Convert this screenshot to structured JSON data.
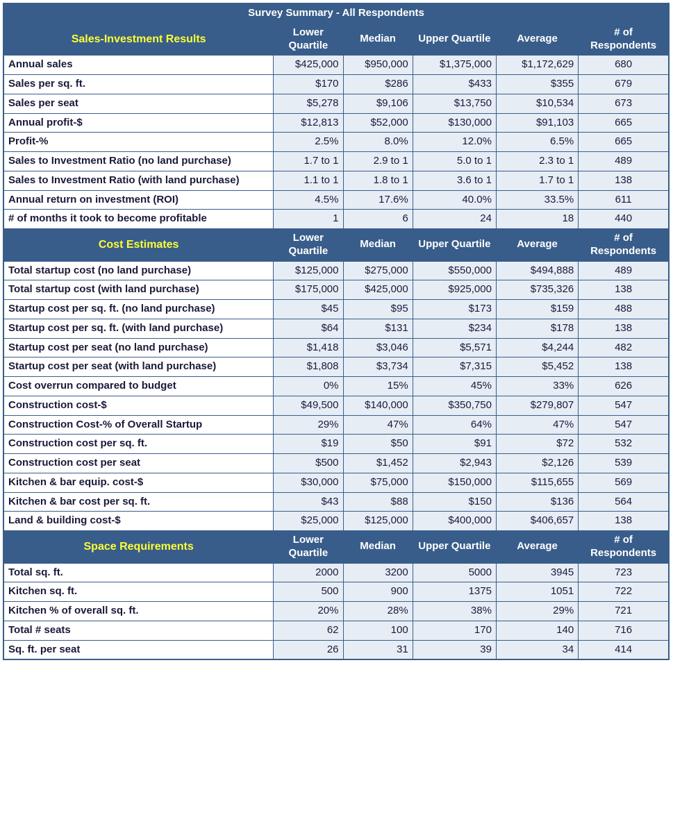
{
  "title": "Survey Summary - All Respondents",
  "columns": [
    "Lower Quartile",
    "Median",
    "Upper Quartile",
    "Average",
    "# of Respondents"
  ],
  "sections": [
    {
      "name": "Sales-Investment Results",
      "rows": [
        {
          "label": "Annual sales",
          "vals": [
            "$425,000",
            "$950,000",
            "$1,375,000",
            "$1,172,629",
            "680"
          ]
        },
        {
          "label": "Sales per sq. ft.",
          "vals": [
            "$170",
            "$286",
            "$433",
            "$355",
            "679"
          ]
        },
        {
          "label": "Sales per seat",
          "vals": [
            "$5,278",
            "$9,106",
            "$13,750",
            "$10,534",
            "673"
          ]
        },
        {
          "label": "Annual profit-$",
          "vals": [
            "$12,813",
            "$52,000",
            "$130,000",
            "$91,103",
            "665"
          ]
        },
        {
          "label": "Profit-%",
          "vals": [
            "2.5%",
            "8.0%",
            "12.0%",
            "6.5%",
            "665"
          ]
        },
        {
          "label": "Sales to Investment Ratio (no land purchase)",
          "vals": [
            "1.7 to 1",
            "2.9 to 1",
            "5.0 to 1",
            "2.3 to 1",
            "489"
          ]
        },
        {
          "label": "Sales to Investment Ratio (with land purchase)",
          "vals": [
            "1.1 to 1",
            "1.8 to 1",
            "3.6 to 1",
            "1.7 to 1",
            "138"
          ]
        },
        {
          "label": "Annual return on investment (ROI)",
          "vals": [
            "4.5%",
            "17.6%",
            "40.0%",
            "33.5%",
            "611"
          ]
        },
        {
          "label": "# of months it took to become profitable",
          "vals": [
            "1",
            "6",
            "24",
            "18",
            "440"
          ]
        }
      ]
    },
    {
      "name": "Cost Estimates",
      "rows": [
        {
          "label": "Total startup cost (no land purchase)",
          "vals": [
            "$125,000",
            "$275,000",
            "$550,000",
            "$494,888",
            "489"
          ]
        },
        {
          "label": "Total startup cost (with land purchase)",
          "vals": [
            "$175,000",
            "$425,000",
            "$925,000",
            "$735,326",
            "138"
          ]
        },
        {
          "label": "Startup cost per sq. ft. (no land purchase)",
          "vals": [
            "$45",
            "$95",
            "$173",
            "$159",
            "488"
          ]
        },
        {
          "label": "Startup cost per sq. ft. (with land purchase)",
          "vals": [
            "$64",
            "$131",
            "$234",
            "$178",
            "138"
          ]
        },
        {
          "label": "Startup cost per seat (no land purchase)",
          "vals": [
            "$1,418",
            "$3,046",
            "$5,571",
            "$4,244",
            "482"
          ]
        },
        {
          "label": "Startup cost per seat (with land purchase)",
          "vals": [
            "$1,808",
            "$3,734",
            "$7,315",
            "$5,452",
            "138"
          ]
        },
        {
          "label": "Cost overrun compared to budget",
          "vals": [
            "0%",
            "15%",
            "45%",
            "33%",
            "626"
          ]
        },
        {
          "label": "Construction cost-$",
          "vals": [
            "$49,500",
            "$140,000",
            "$350,750",
            "$279,807",
            "547"
          ]
        },
        {
          "label": "Construction Cost-% of Overall Startup",
          "vals": [
            "29%",
            "47%",
            "64%",
            "47%",
            "547"
          ]
        },
        {
          "label": "Construction cost per sq. ft.",
          "vals": [
            "$19",
            "$50",
            "$91",
            "$72",
            "532"
          ]
        },
        {
          "label": "Construction cost per seat",
          "vals": [
            "$500",
            "$1,452",
            "$2,943",
            "$2,126",
            "539"
          ]
        },
        {
          "label": "Kitchen & bar equip. cost-$",
          "vals": [
            "$30,000",
            "$75,000",
            "$150,000",
            "$115,655",
            "569"
          ]
        },
        {
          "label": "Kitchen & bar cost per sq. ft.",
          "vals": [
            "$43",
            "$88",
            "$150",
            "$136",
            "564"
          ]
        },
        {
          "label": "Land & building cost-$",
          "vals": [
            "$25,000",
            "$125,000",
            "$400,000",
            "$406,657",
            "138"
          ]
        }
      ]
    },
    {
      "name": "Space Requirements",
      "rows": [
        {
          "label": "Total sq. ft.",
          "vals": [
            "2000",
            "3200",
            "5000",
            "3945",
            "723"
          ]
        },
        {
          "label": "Kitchen sq. ft.",
          "vals": [
            "500",
            "900",
            "1375",
            "1051",
            "722"
          ]
        },
        {
          "label": "Kitchen % of overall sq. ft.",
          "vals": [
            "20%",
            "28%",
            "38%",
            "29%",
            "721"
          ]
        },
        {
          "label": "Total # seats",
          "vals": [
            "62",
            "100",
            "170",
            "140",
            "716"
          ]
        },
        {
          "label": "Sq. ft. per seat",
          "vals": [
            "26",
            "31",
            "39",
            "34",
            "414"
          ]
        }
      ]
    }
  ],
  "colors": {
    "header_bg": "#385d8a",
    "header_text": "#ffffff",
    "accent_text": "#ffff33",
    "cell_bg": "#e7edf5",
    "border": "#385d8a"
  }
}
